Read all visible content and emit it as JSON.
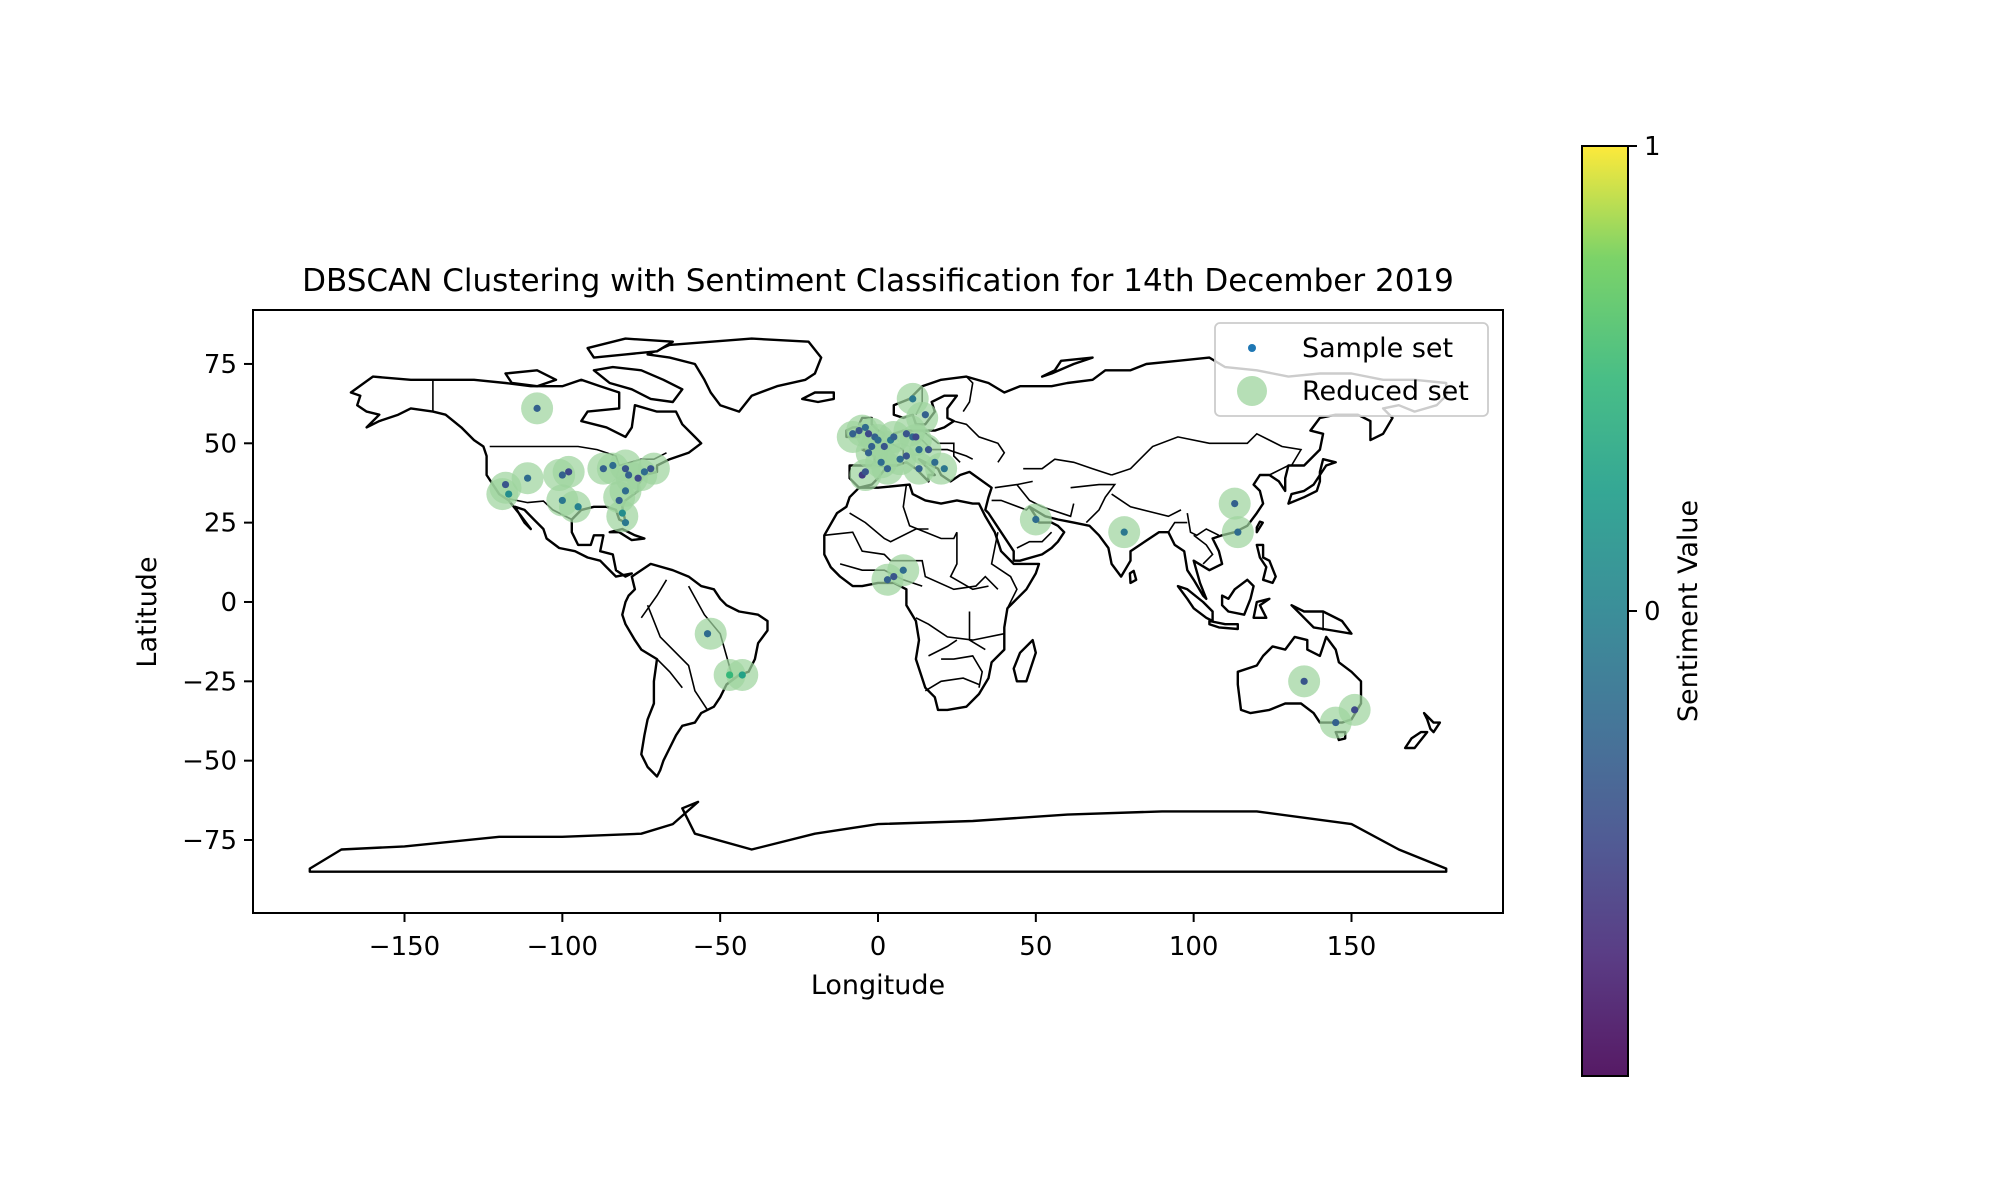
{
  "chart_data": {
    "type": "scatter",
    "title": "DBSCAN Clustering with Sentiment Classification for 14th December 2019",
    "xlabel": "Longitude",
    "ylabel": "Latitude",
    "xlim": [
      -198,
      198
    ],
    "ylim": [
      -98,
      92
    ],
    "xticks": [
      -150,
      -100,
      -50,
      0,
      50,
      100,
      150
    ],
    "yticks": [
      -75,
      -50,
      -25,
      0,
      25,
      50,
      75
    ],
    "xtick_labels": [
      "−150",
      "−100",
      "−50",
      "0",
      "50",
      "100",
      "150"
    ],
    "ytick_labels": [
      "−75",
      "−50",
      "−25",
      "0",
      "25",
      "50",
      "75"
    ],
    "grid": false,
    "legend": {
      "placement": "top-right",
      "entries": [
        "Sample set",
        "Reduced set"
      ]
    },
    "colorbar": {
      "label": "Sentiment Value",
      "colormap": "viridis",
      "ticks": [
        1,
        0
      ],
      "tick_labels": [
        "1",
        "0"
      ],
      "range": [
        -1,
        1
      ]
    },
    "colors": {
      "reduced_set": "#9ed49e",
      "sample_set": "#1f77b4"
    },
    "series": [
      {
        "name": "Reduced set",
        "points": [
          [
            -108,
            61
          ],
          [
            -118,
            36
          ],
          [
            -119,
            34
          ],
          [
            -111,
            39
          ],
          [
            -101,
            40
          ],
          [
            -98,
            41
          ],
          [
            -100,
            32
          ],
          [
            -96,
            30
          ],
          [
            -87,
            42
          ],
          [
            -84,
            42
          ],
          [
            -80,
            43
          ],
          [
            -78,
            39
          ],
          [
            -75,
            40
          ],
          [
            -71,
            42
          ],
          [
            -82,
            33
          ],
          [
            -80,
            35
          ],
          [
            -81,
            27
          ],
          [
            -53,
            -10
          ],
          [
            -47,
            -23
          ],
          [
            -43,
            -23
          ],
          [
            -8,
            52
          ],
          [
            -5,
            54
          ],
          [
            -2,
            53
          ],
          [
            0,
            51
          ],
          [
            2,
            49
          ],
          [
            5,
            52
          ],
          [
            10,
            54
          ],
          [
            -2,
            47
          ],
          [
            1,
            44
          ],
          [
            -4,
            40
          ],
          [
            3,
            42
          ],
          [
            7,
            45
          ],
          [
            11,
            64
          ],
          [
            14,
            58
          ],
          [
            12,
            51
          ],
          [
            15,
            48
          ],
          [
            13,
            42
          ],
          [
            20,
            42
          ],
          [
            3,
            7
          ],
          [
            8,
            10
          ],
          [
            50,
            26
          ],
          [
            78,
            22
          ],
          [
            113,
            31
          ],
          [
            114,
            22
          ],
          [
            135,
            -25
          ],
          [
            145,
            -38
          ],
          [
            151,
            -34
          ]
        ]
      },
      {
        "name": "Sample set",
        "points": [
          [
            -108,
            61,
            -0.3
          ],
          [
            -118,
            37,
            -0.4
          ],
          [
            -117,
            34,
            0.1
          ],
          [
            -111,
            39,
            -0.2
          ],
          [
            -100,
            40,
            -0.3
          ],
          [
            -98,
            41,
            -0.5
          ],
          [
            -100,
            32,
            -0.1
          ],
          [
            -95,
            30,
            0.0
          ],
          [
            -87,
            42,
            -0.3
          ],
          [
            -84,
            43,
            -0.2
          ],
          [
            -80,
            42,
            -0.4
          ],
          [
            -79,
            40,
            -0.3
          ],
          [
            -76,
            39,
            -0.5
          ],
          [
            -74,
            41,
            -0.2
          ],
          [
            -72,
            42,
            -0.4
          ],
          [
            -82,
            32,
            -0.3
          ],
          [
            -80,
            35,
            -0.2
          ],
          [
            -81,
            28,
            0.1
          ],
          [
            -80,
            25,
            -0.1
          ],
          [
            -54,
            -10,
            -0.2
          ],
          [
            -47,
            -23,
            0.5
          ],
          [
            -43,
            -23,
            0.3
          ],
          [
            -8,
            53,
            -0.3
          ],
          [
            -6,
            54,
            -0.4
          ],
          [
            -4,
            55,
            -0.2
          ],
          [
            -3,
            53,
            -0.5
          ],
          [
            -1,
            52,
            -0.3
          ],
          [
            0,
            51,
            -0.2
          ],
          [
            2,
            49,
            -0.4
          ],
          [
            -2,
            49,
            -0.3
          ],
          [
            4,
            51,
            -0.1
          ],
          [
            5,
            52,
            -0.3
          ],
          [
            9,
            53,
            -0.4
          ],
          [
            11,
            52,
            -0.2
          ],
          [
            12,
            52,
            -0.5
          ],
          [
            -3,
            47,
            -0.3
          ],
          [
            1,
            44,
            -0.2
          ],
          [
            -5,
            40,
            -0.6
          ],
          [
            -4,
            41,
            -0.4
          ],
          [
            3,
            42,
            -0.3
          ],
          [
            7,
            45,
            -0.2
          ],
          [
            9,
            46,
            -0.4
          ],
          [
            11,
            64,
            -0.1
          ],
          [
            15,
            59,
            -0.3
          ],
          [
            13,
            48,
            -0.2
          ],
          [
            16,
            48,
            -0.4
          ],
          [
            13,
            42,
            -0.3
          ],
          [
            18,
            44,
            -0.2
          ],
          [
            21,
            42,
            -0.1
          ],
          [
            3,
            7,
            -0.3
          ],
          [
            8,
            10,
            -0.2
          ],
          [
            5,
            8,
            -0.4
          ],
          [
            50,
            26,
            -0.2
          ],
          [
            78,
            22,
            -0.1
          ],
          [
            113,
            31,
            -0.3
          ],
          [
            114,
            22,
            -0.2
          ],
          [
            135,
            -25,
            -0.4
          ],
          [
            145,
            -38,
            -0.3
          ],
          [
            151,
            -34,
            -0.5
          ]
        ]
      }
    ]
  }
}
